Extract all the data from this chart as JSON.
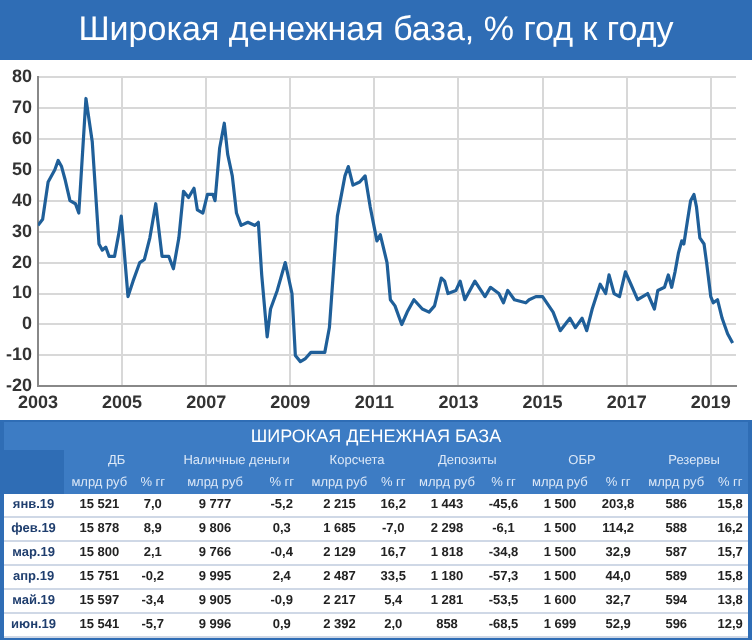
{
  "chart_data": [
    {
      "type": "line",
      "title": "Широкая денежная база, % год к году",
      "x": [
        2003.0,
        2003.11,
        2003.24,
        2003.4,
        2003.48,
        2003.56,
        2003.64,
        2003.76,
        2003.89,
        2003.97,
        2004.14,
        2004.29,
        2004.45,
        2004.53,
        2004.61,
        2004.69,
        2004.82,
        2004.93,
        2004.98,
        2005.14,
        2005.26,
        2005.42,
        2005.53,
        2005.66,
        2005.8,
        2005.95,
        2006.11,
        2006.22,
        2006.35,
        2006.46,
        2006.58,
        2006.71,
        2006.79,
        2006.92,
        2007.03,
        2007.16,
        2007.21,
        2007.32,
        2007.43,
        2007.51,
        2007.62,
        2007.72,
        2007.83,
        2007.99,
        2008.16,
        2008.24,
        2008.32,
        2008.45,
        2008.53,
        2008.69,
        2008.88,
        2009.04,
        2009.12,
        2009.24,
        2009.36,
        2009.49,
        2009.69,
        2009.82,
        2009.93,
        2010.12,
        2010.3,
        2010.38,
        2010.49,
        2010.65,
        2010.78,
        2010.9,
        2011.06,
        2011.14,
        2011.3,
        2011.38,
        2011.49,
        2011.65,
        2011.78,
        2011.94,
        2012.14,
        2012.3,
        2012.43,
        2012.59,
        2012.67,
        2012.75,
        2012.94,
        2013.04,
        2013.15,
        2013.39,
        2013.63,
        2013.76,
        2013.96,
        2014.07,
        2014.17,
        2014.33,
        2014.6,
        2014.68,
        2014.84,
        2015.0,
        2015.25,
        2015.42,
        2015.65,
        2015.78,
        2015.94,
        2016.05,
        2016.18,
        2016.37,
        2016.5,
        2016.58,
        2016.7,
        2016.83,
        2016.97,
        2017.1,
        2017.26,
        2017.5,
        2017.66,
        2017.74,
        2017.9,
        2017.99,
        2018.07,
        2018.15,
        2018.23,
        2018.31,
        2018.36,
        2018.44,
        2018.52,
        2018.6,
        2018.66,
        2018.74,
        2018.84,
        2018.9,
        2019.0,
        2019.06,
        2019.16,
        2019.27,
        2019.4,
        2019.52
      ],
      "series": [
        {
          "color": "#1f5f99",
          "values": [
            32,
            34,
            46,
            50,
            53,
            51,
            47,
            40,
            39,
            36,
            73,
            59,
            26,
            24,
            25,
            22,
            22,
            30,
            35,
            9,
            14,
            20,
            21,
            28,
            39,
            22,
            22,
            18,
            28,
            43,
            41,
            44,
            37,
            36,
            42,
            42,
            40,
            57,
            65,
            55,
            48,
            36,
            32,
            33,
            32,
            33,
            16,
            -4,
            5,
            11,
            20,
            10,
            -10,
            -12,
            -11,
            -9,
            -9,
            -9,
            -1,
            35,
            48,
            51,
            45,
            46,
            48,
            38,
            27,
            29,
            20,
            8,
            6,
            0,
            4,
            8,
            5,
            4,
            6,
            15,
            14,
            10,
            11,
            14,
            8,
            14,
            9,
            12,
            10,
            7,
            11,
            8,
            7,
            8,
            9,
            9,
            4,
            -2,
            2,
            -1,
            2,
            -2,
            5,
            13,
            10,
            16,
            10,
            9,
            17,
            13,
            8,
            10,
            5,
            11,
            12,
            16,
            12,
            17,
            23,
            27,
            26,
            33,
            40,
            42,
            38,
            28,
            26,
            20,
            9,
            7,
            8,
            2,
            -3,
            -6
          ]
        }
      ],
      "xlim": [
        2003,
        2019.6
      ],
      "xticks": [
        2003,
        2005,
        2007,
        2009,
        2011,
        2013,
        2015,
        2017,
        2019
      ],
      "ylim": [
        -20,
        80
      ],
      "yticks": [
        -20,
        -10,
        0,
        10,
        20,
        30,
        40,
        50,
        60,
        70,
        80
      ],
      "grid": true,
      "legend": false,
      "marker": "none",
      "line_style": "solid"
    },
    {
      "type": "other",
      "title": "ШИРОКАЯ ДЕНЕЖНАЯ БАЗА",
      "categories": [
        "ДБ",
        "Наличные деньги",
        "Корсчета",
        "Депозиты",
        "ОБР",
        "Резервы"
      ],
      "annotations": [
        "млрд руб",
        "% гг"
      ],
      "y_categories": [
        "янв.19",
        "фев.19",
        "мар.19",
        "апр.19",
        "май.19",
        "июн.19"
      ],
      "cell_labels": [
        [
          "15 521",
          "7,0",
          "9 777",
          "-5,2",
          "2 215",
          "16,2",
          "1 443",
          "-45,6",
          "1 500",
          "203,8",
          "586",
          "15,8"
        ],
        [
          "15 878",
          "8,9",
          "9 806",
          "0,3",
          "1 685",
          "-7,0",
          "2 298",
          "-6,1",
          "1 500",
          "114,2",
          "588",
          "16,2"
        ],
        [
          "15 800",
          "2,1",
          "9 766",
          "-0,4",
          "2 129",
          "16,7",
          "1 818",
          "-34,8",
          "1 500",
          "32,9",
          "587",
          "15,7"
        ],
        [
          "15 751",
          "-0,2",
          "9 995",
          "2,4",
          "2 487",
          "33,5",
          "1 180",
          "-57,3",
          "1 500",
          "44,0",
          "589",
          "15,8"
        ],
        [
          "15 597",
          "-3,4",
          "9 905",
          "-0,9",
          "2 217",
          "5,4",
          "1 281",
          "-53,5",
          "1 600",
          "32,7",
          "594",
          "13,8"
        ],
        [
          "15 541",
          "-5,7",
          "9 996",
          "0,9",
          "2 392",
          "2,0",
          "858",
          "-68,5",
          "1 699",
          "52,9",
          "596",
          "12,9"
        ]
      ]
    }
  ]
}
